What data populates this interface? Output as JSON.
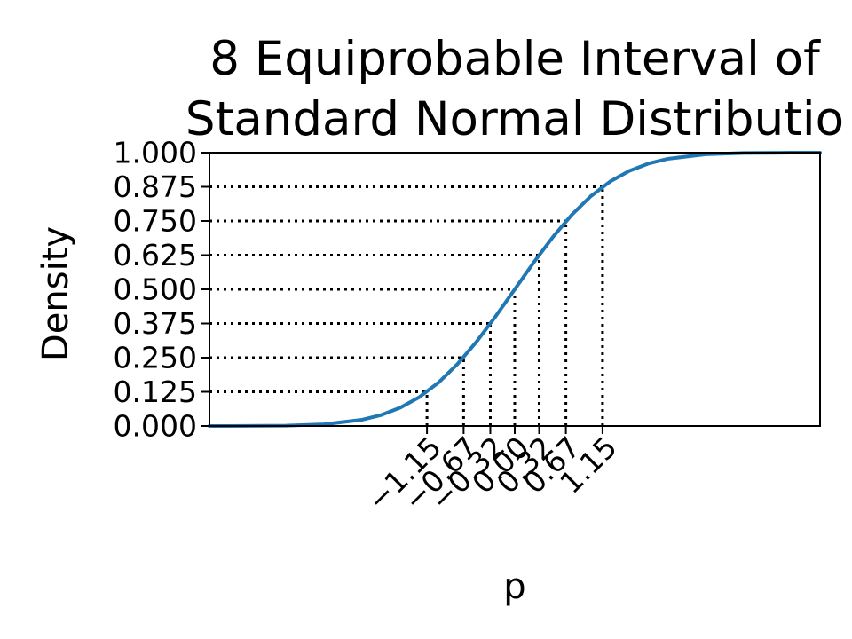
{
  "chart_data": {
    "type": "line",
    "title_lines": [
      "8 Equiprobable Interval of",
      "Standard Normal Distributio"
    ],
    "xlabel": "p",
    "ylabel": "Density",
    "xlim": [
      -4,
      4
    ],
    "ylim": [
      0,
      1
    ],
    "yticks": [
      0.0,
      0.125,
      0.25,
      0.375,
      0.5,
      0.625,
      0.75,
      0.875,
      1.0
    ],
    "ytick_labels": [
      "0.000",
      "0.125",
      "0.250",
      "0.375",
      "0.500",
      "0.625",
      "0.750",
      "0.875",
      "1.000"
    ],
    "xticks": [
      -1.15,
      -0.67,
      -0.32,
      0.0,
      0.32,
      0.67,
      1.15
    ],
    "xtick_labels": [
      "−1.15",
      "−0.67",
      "−0.32",
      "0.00",
      "0.32",
      "0.67",
      "1.15"
    ],
    "series": [
      {
        "color": "#1f77b4",
        "x": [
          -4.0,
          -3.5,
          -3.0,
          -2.5,
          -2.0,
          -1.75,
          -1.5,
          -1.25,
          -1.0,
          -0.75,
          -0.5,
          -0.25,
          0.0,
          0.25,
          0.5,
          0.75,
          1.0,
          1.25,
          1.5,
          1.75,
          2.0,
          2.5,
          3.0,
          3.5,
          4.0
        ],
        "y": [
          3e-05,
          0.00023,
          0.00135,
          0.00621,
          0.02275,
          0.04006,
          0.06681,
          0.10565,
          0.15866,
          0.22663,
          0.30854,
          0.40129,
          0.5,
          0.59871,
          0.69146,
          0.77337,
          0.84134,
          0.89435,
          0.93319,
          0.95994,
          0.97725,
          0.99379,
          0.99865,
          0.99977,
          0.99997
        ]
      }
    ],
    "reference_lines": {
      "x": [
        -1.15,
        -0.67,
        -0.32,
        0.0,
        0.32,
        0.67,
        1.15
      ],
      "y": [
        0.125,
        0.25,
        0.375,
        0.5,
        0.625,
        0.75,
        0.875
      ],
      "style": "dotted",
      "color": "#000000"
    },
    "grid": false
  }
}
